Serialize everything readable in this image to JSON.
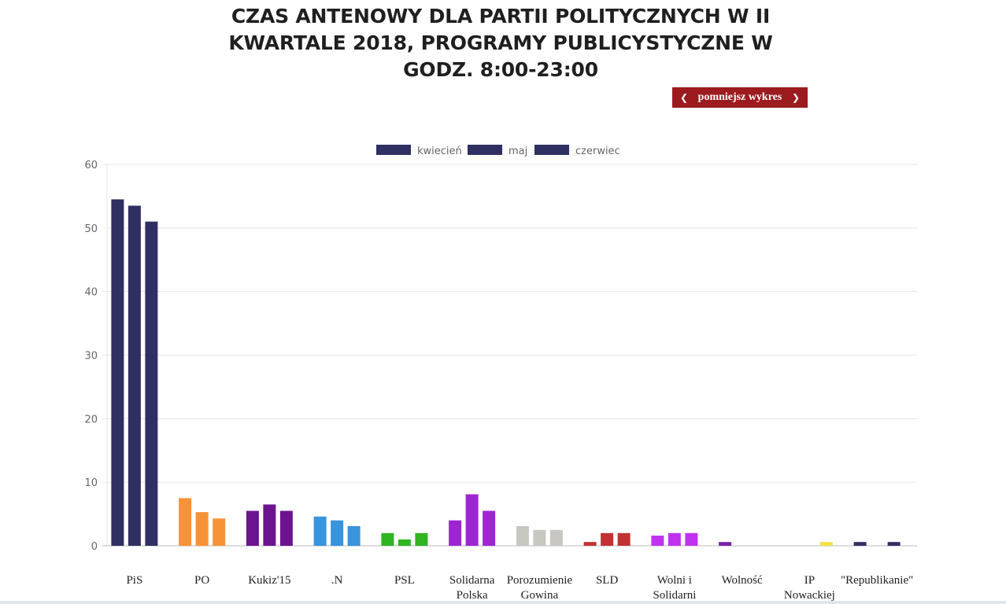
{
  "header": {
    "title": "CZAS ANTENOWY DLA PARTII POLITYCZNYCH W II KWARTALE 2018, PROGRAMY PUBLICYSTYCZNE W GODZ. 8:00-23:00",
    "shrink_button": {
      "label": "pomniejsz wykres",
      "left_icon": "chevron-left-icon",
      "right_icon": "chevron-right-icon"
    }
  },
  "chart_data": {
    "type": "bar",
    "categories": [
      [
        "PiS"
      ],
      [
        "PO"
      ],
      [
        "Kukiz'15"
      ],
      [
        ".N"
      ],
      [
        "PSL"
      ],
      [
        "Solidarna",
        "Polska"
      ],
      [
        "Porozumienie",
        "Gowina"
      ],
      [
        "SLD"
      ],
      [
        "Wolni i",
        "Solidarni"
      ],
      [
        "Wolność"
      ],
      [
        "IP",
        "Nowackiej"
      ],
      [
        "\"Republikanie\""
      ]
    ],
    "series": [
      {
        "name": "kwiecień",
        "values": [
          54.5,
          7.5,
          5.5,
          4.6,
          2.0,
          4.0,
          3.1,
          0.6,
          1.6,
          0.6,
          0,
          0.6
        ]
      },
      {
        "name": "maj",
        "values": [
          53.5,
          5.3,
          6.5,
          4.0,
          1.0,
          8.1,
          2.5,
          2.0,
          2.0,
          0,
          0,
          0
        ]
      },
      {
        "name": "czerwiec",
        "values": [
          51.0,
          4.3,
          5.5,
          3.1,
          2.0,
          5.5,
          2.5,
          2.0,
          2.0,
          0,
          0.6,
          0.6
        ]
      }
    ],
    "category_colors": [
      "#302f62",
      "#f79236",
      "#6c148f",
      "#3894dc",
      "#2fb520",
      "#9d26d2",
      "#c8c7c1",
      "#c13333",
      "#c132ef",
      "#7c25ab",
      "#f2e144",
      "#302f62"
    ],
    "legend_color": "#302f62",
    "ylim": [
      0,
      60
    ],
    "yticks": [
      0,
      10,
      20,
      30,
      40,
      50,
      60
    ],
    "grid": true,
    "legend_position": "top"
  }
}
